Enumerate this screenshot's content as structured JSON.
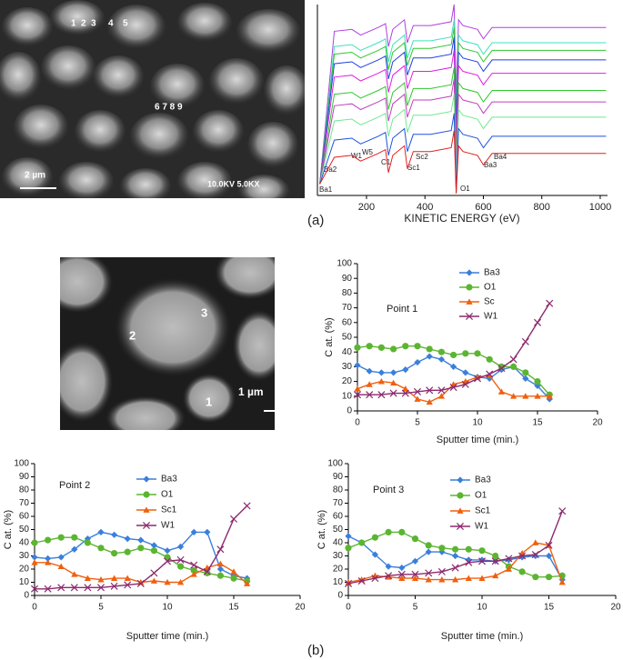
{
  "chart_data": [
    {
      "type": "line",
      "xlabel": "KINETIC ENERGY (eV)",
      "x": [
        40,
        90,
        150,
        180,
        240,
        265,
        275,
        290,
        330,
        340,
        360,
        420,
        490,
        500,
        507,
        515,
        530,
        580,
        600,
        630,
        800,
        1020
      ],
      "xlim": [
        32,
        1025
      ],
      "xticks": [
        200,
        400,
        600,
        800,
        1000
      ],
      "ylim": [
        0,
        100
      ],
      "annotations": [
        "Ba1",
        "Ba2",
        "W1",
        "W5",
        "C1",
        "Sc1",
        "Sc2",
        "O1",
        "Ba3",
        "Ba4"
      ],
      "series": [
        {
          "color": "#b040e0",
          "values": [
            6,
            86,
            87,
            84,
            88,
            90,
            78,
            87,
            92,
            80,
            89,
            89,
            91,
            100,
            53,
            92,
            89,
            87,
            82,
            88,
            88,
            88
          ]
        },
        {
          "color": "#40e0c0",
          "values": [
            6,
            78,
            79,
            76,
            80,
            82,
            70,
            79,
            84,
            72,
            81,
            81,
            83,
            92,
            45,
            84,
            81,
            79,
            74,
            80,
            80,
            80
          ]
        },
        {
          "color": "#30c830",
          "values": [
            6,
            74,
            75,
            72,
            76,
            78,
            66,
            75,
            80,
            68,
            77,
            77,
            79,
            88,
            41,
            80,
            77,
            75,
            70,
            76,
            76,
            76
          ]
        },
        {
          "color": "#2040e0",
          "values": [
            6,
            69,
            70,
            67,
            71,
            73,
            61,
            70,
            75,
            63,
            72,
            72,
            74,
            83,
            36,
            75,
            72,
            70,
            65,
            71,
            71,
            71
          ]
        },
        {
          "color": "#e020e0",
          "values": [
            6,
            62,
            63,
            60,
            64,
            66,
            54,
            63,
            68,
            56,
            65,
            65,
            67,
            76,
            29,
            68,
            65,
            63,
            58,
            64,
            64,
            64
          ]
        },
        {
          "color": "#30c830",
          "values": [
            6,
            53,
            54,
            51,
            55,
            57,
            45,
            54,
            59,
            47,
            56,
            56,
            58,
            67,
            20,
            59,
            56,
            54,
            49,
            55,
            55,
            55
          ]
        },
        {
          "color": "#c040c0",
          "values": [
            6,
            47,
            48,
            45,
            49,
            51,
            39,
            48,
            53,
            41,
            50,
            50,
            52,
            61,
            14,
            53,
            50,
            48,
            43,
            49,
            49,
            49
          ]
        },
        {
          "color": "#70e890",
          "values": [
            6,
            39,
            40,
            37,
            41,
            43,
            31,
            40,
            45,
            33,
            42,
            42,
            44,
            53,
            6,
            45,
            42,
            40,
            35,
            41,
            41,
            41
          ]
        },
        {
          "color": "#2050e0",
          "values": [
            6,
            29,
            30,
            27,
            31,
            33,
            21,
            30,
            35,
            23,
            32,
            32,
            34,
            43,
            2,
            35,
            32,
            30,
            25,
            31,
            31,
            31
          ]
        },
        {
          "color": "#e02020",
          "values": [
            6,
            20,
            21,
            18,
            22,
            24,
            12,
            21,
            26,
            14,
            23,
            23,
            25,
            34,
            1,
            26,
            23,
            21,
            16,
            22,
            22,
            22
          ]
        }
      ]
    },
    {
      "type": "line",
      "annotation": "Point 1",
      "xlabel": "Sputter time (min.)",
      "ylabel": "C at. (%)",
      "x": [
        0,
        1,
        2,
        3,
        4,
        5,
        6,
        7,
        8,
        9,
        10,
        11,
        12,
        13,
        14,
        15,
        16
      ],
      "xlim": [
        0,
        20
      ],
      "xticks": [
        0,
        5,
        10,
        15,
        20
      ],
      "ylim": [
        0,
        100
      ],
      "yticks": [
        0,
        10,
        20,
        30,
        40,
        50,
        60,
        70,
        80,
        90,
        100
      ],
      "legend": "upper center",
      "series": [
        {
          "name": "Ba3",
          "color": "#3a7fdc",
          "marker": "diamond",
          "values": [
            31,
            27,
            26,
            26,
            28,
            33,
            37,
            35,
            30,
            26,
            23,
            22,
            28,
            30,
            22,
            17,
            8
          ]
        },
        {
          "name": "O1",
          "color": "#5cb531",
          "marker": "circle",
          "values": [
            43,
            44,
            43,
            42,
            44,
            44,
            42,
            40,
            38,
            39,
            39,
            35,
            30,
            30,
            26,
            20,
            11
          ]
        },
        {
          "name": "Sc",
          "color": "#f0600f",
          "marker": "triangle",
          "values": [
            15,
            18,
            20,
            19,
            15,
            8,
            6,
            10,
            18,
            20,
            23,
            24,
            13,
            10,
            10,
            10,
            10
          ]
        },
        {
          "name": "W1",
          "color": "#8b2a6e",
          "marker": "x",
          "values": [
            11,
            11,
            11,
            12,
            12,
            13,
            14,
            14,
            16,
            18,
            22,
            25,
            29,
            35,
            47,
            60,
            73
          ]
        }
      ]
    },
    {
      "type": "line",
      "annotation": "Point 2",
      "xlabel": "Sputter time (min.)",
      "ylabel": "C at. (%)",
      "x": [
        0,
        1,
        2,
        3,
        4,
        5,
        6,
        7,
        8,
        9,
        10,
        11,
        12,
        13,
        14,
        15,
        16
      ],
      "xlim": [
        0,
        20
      ],
      "xticks": [
        0,
        5,
        10,
        15,
        20
      ],
      "ylim": [
        0,
        100
      ],
      "yticks": [
        0,
        10,
        20,
        30,
        40,
        50,
        60,
        70,
        80,
        90,
        100
      ],
      "legend": "upper center",
      "series": [
        {
          "name": "Ba3",
          "color": "#3a7fdc",
          "marker": "diamond",
          "values": [
            29,
            28,
            29,
            35,
            43,
            48,
            46,
            43,
            42,
            38,
            34,
            37,
            48,
            48,
            20,
            15,
            13
          ]
        },
        {
          "name": "O1",
          "color": "#5cb531",
          "marker": "circle",
          "values": [
            40,
            42,
            44,
            44,
            40,
            36,
            32,
            33,
            36,
            34,
            29,
            22,
            19,
            17,
            15,
            13,
            11
          ]
        },
        {
          "name": "Sc1",
          "color": "#f0600f",
          "marker": "triangle",
          "values": [
            25,
            25,
            22,
            16,
            13,
            12,
            13,
            13,
            10,
            11,
            10,
            10,
            16,
            21,
            24,
            18,
            9
          ]
        },
        {
          "name": "W1",
          "color": "#8b2a6e",
          "marker": "x",
          "values": [
            5,
            5,
            6,
            6,
            6,
            6,
            7,
            8,
            9,
            17,
            26,
            27,
            23,
            18,
            35,
            58,
            68
          ]
        }
      ]
    },
    {
      "type": "line",
      "annotation": "Point 3",
      "xlabel": "Sputter time (min.)",
      "ylabel": "C at. (%)",
      "x": [
        0,
        1,
        2,
        3,
        4,
        5,
        6,
        7,
        8,
        9,
        10,
        11,
        12,
        13,
        14,
        15,
        16
      ],
      "xlim": [
        0,
        20
      ],
      "xticks": [
        0,
        5,
        10,
        15,
        20
      ],
      "ylim": [
        0,
        100
      ],
      "yticks": [
        0,
        10,
        20,
        30,
        40,
        50,
        60,
        70,
        80,
        90,
        100
      ],
      "legend": "upper center",
      "series": [
        {
          "name": "Ba3",
          "color": "#3a7fdc",
          "marker": "diamond",
          "values": [
            45,
            40,
            31,
            22,
            21,
            26,
            33,
            33,
            30,
            27,
            27,
            26,
            27,
            29,
            30,
            30,
            12
          ]
        },
        {
          "name": "O1",
          "color": "#5cb531",
          "marker": "circle",
          "values": [
            36,
            40,
            44,
            48,
            48,
            43,
            38,
            36,
            35,
            35,
            34,
            30,
            22,
            18,
            14,
            14,
            15
          ]
        },
        {
          "name": "Sc1",
          "color": "#f0600f",
          "marker": "triangle",
          "values": [
            10,
            12,
            15,
            14,
            13,
            13,
            12,
            12,
            12,
            13,
            13,
            15,
            20,
            32,
            40,
            38,
            10
          ]
        },
        {
          "name": "W1",
          "color": "#8b2a6e",
          "marker": "x",
          "values": [
            9,
            11,
            13,
            15,
            16,
            16,
            17,
            18,
            21,
            25,
            26,
            26,
            28,
            30,
            31,
            38,
            64
          ]
        }
      ]
    }
  ],
  "images": [
    {
      "labels": [
        "1",
        "2",
        "3",
        "4",
        "5",
        "6 7 8 9",
        "2 µm",
        "10.0KV 5.0KX"
      ]
    },
    {
      "labels": [
        "2",
        "3",
        "1",
        "1 µm"
      ]
    }
  ],
  "panel_labels": [
    "(a)",
    "(b)"
  ]
}
